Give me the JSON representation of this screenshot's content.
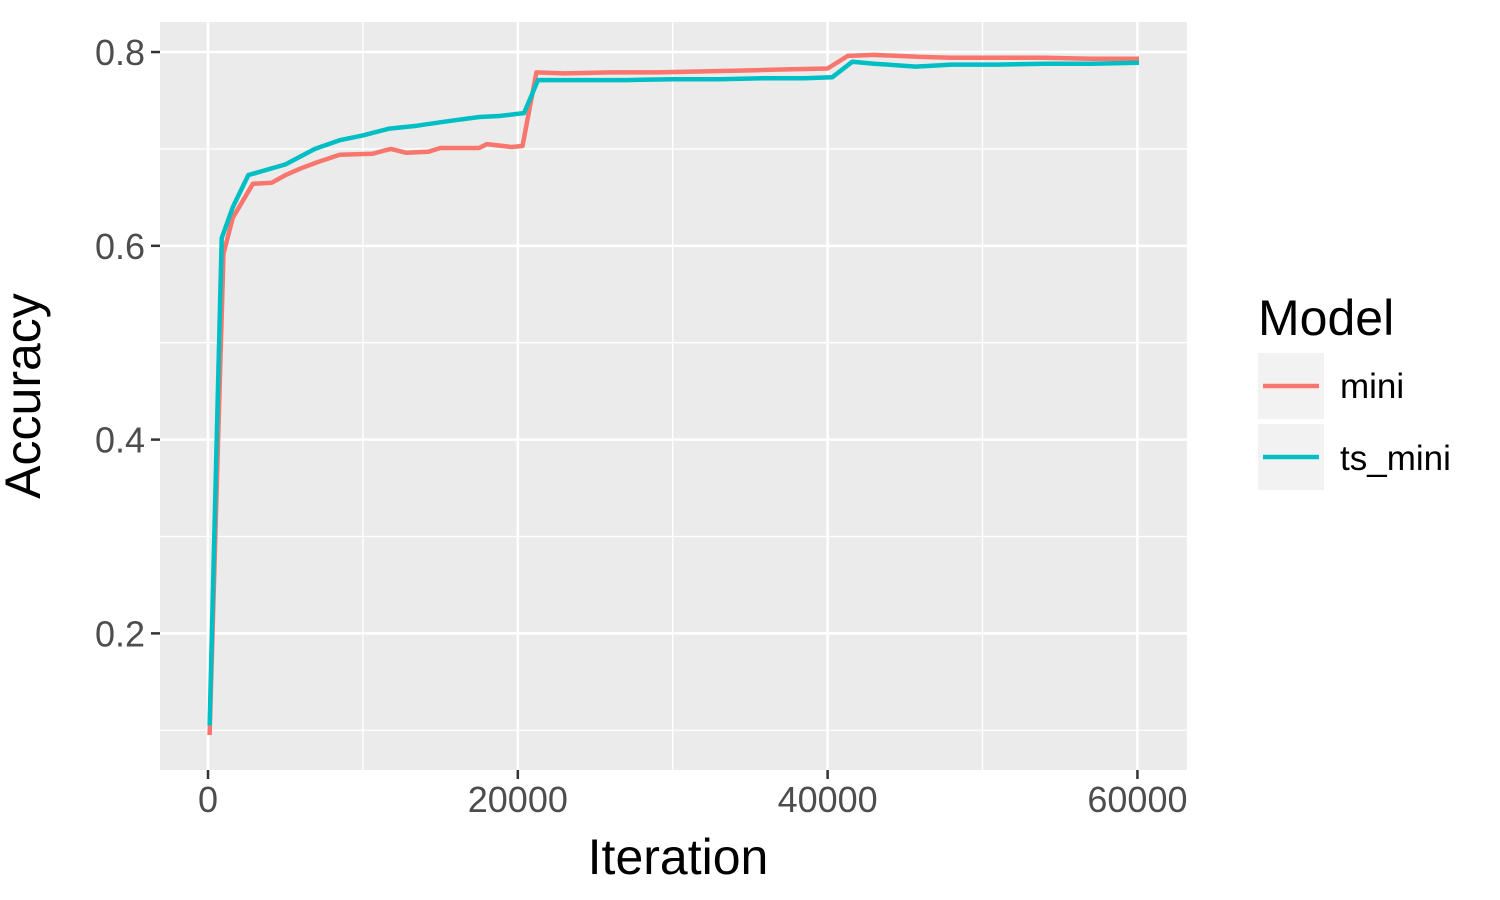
{
  "chart_data": {
    "type": "line",
    "title": "",
    "xlabel": "Iteration",
    "ylabel": "Accuracy",
    "legend_title": "Model",
    "legend_position": "right",
    "grid": true,
    "xlim": [
      -3100,
      63200
    ],
    "ylim": [
      0.059,
      0.831
    ],
    "x_ticks": [
      0,
      20000,
      40000,
      60000
    ],
    "x_tick_labels": [
      "0",
      "20000",
      "40000",
      "60000"
    ],
    "x_minor_ticks": [
      10000,
      30000,
      50000
    ],
    "y_ticks": [
      0.2,
      0.4,
      0.6,
      0.8
    ],
    "y_tick_labels": [
      "0.2",
      "0.4",
      "0.6",
      "0.8"
    ],
    "y_minor_ticks": [
      0.1,
      0.3,
      0.5,
      0.7
    ],
    "series": [
      {
        "name": "mini",
        "color": "#F8766D",
        "points": [
          [
            100,
            0.095
          ],
          [
            1000,
            0.592
          ],
          [
            1600,
            0.629
          ],
          [
            2900,
            0.664
          ],
          [
            4100,
            0.665
          ],
          [
            5000,
            0.673
          ],
          [
            6000,
            0.68
          ],
          [
            7000,
            0.686
          ],
          [
            8500,
            0.694
          ],
          [
            10600,
            0.695
          ],
          [
            11800,
            0.7
          ],
          [
            12800,
            0.696
          ],
          [
            14200,
            0.697
          ],
          [
            15000,
            0.701
          ],
          [
            17500,
            0.701
          ],
          [
            18000,
            0.705
          ],
          [
            19600,
            0.702
          ],
          [
            20300,
            0.703
          ],
          [
            21200,
            0.779
          ],
          [
            23000,
            0.778
          ],
          [
            26000,
            0.779
          ],
          [
            29000,
            0.779
          ],
          [
            32000,
            0.78
          ],
          [
            35000,
            0.781
          ],
          [
            37000,
            0.782
          ],
          [
            40000,
            0.783
          ],
          [
            41300,
            0.796
          ],
          [
            43000,
            0.797
          ],
          [
            44500,
            0.796
          ],
          [
            46000,
            0.795
          ],
          [
            48000,
            0.794
          ],
          [
            51000,
            0.794
          ],
          [
            54000,
            0.794
          ],
          [
            57000,
            0.793
          ],
          [
            60100,
            0.793
          ]
        ]
      },
      {
        "name": "ts_mini",
        "color": "#00BFC4",
        "points": [
          [
            100,
            0.105
          ],
          [
            880,
            0.608
          ],
          [
            1600,
            0.64
          ],
          [
            2600,
            0.673
          ],
          [
            3030,
            0.675
          ],
          [
            5000,
            0.684
          ],
          [
            6900,
            0.7
          ],
          [
            8500,
            0.709
          ],
          [
            10000,
            0.714
          ],
          [
            11700,
            0.721
          ],
          [
            13500,
            0.724
          ],
          [
            15200,
            0.728
          ],
          [
            17500,
            0.733
          ],
          [
            18800,
            0.734
          ],
          [
            19900,
            0.736
          ],
          [
            20400,
            0.737
          ],
          [
            21300,
            0.771
          ],
          [
            24000,
            0.771
          ],
          [
            27000,
            0.771
          ],
          [
            30000,
            0.772
          ],
          [
            33000,
            0.772
          ],
          [
            36000,
            0.773
          ],
          [
            38500,
            0.773
          ],
          [
            40300,
            0.774
          ],
          [
            41600,
            0.79
          ],
          [
            43000,
            0.788
          ],
          [
            45700,
            0.785
          ],
          [
            48000,
            0.787
          ],
          [
            51000,
            0.787
          ],
          [
            54000,
            0.788
          ],
          [
            57000,
            0.788
          ],
          [
            60100,
            0.789
          ]
        ]
      }
    ]
  },
  "theme": {
    "background": "#FFFFFF",
    "panel_bg": "#EBEBEB",
    "grid_color": "#FFFFFF",
    "tick_color": "#333333",
    "tick_label_color": "#4D4D4D",
    "axis_title_color": "#000000",
    "legend_title_color": "#000000",
    "legend_label_color": "#000000",
    "legend_key_bg": "#F2F2F2"
  }
}
